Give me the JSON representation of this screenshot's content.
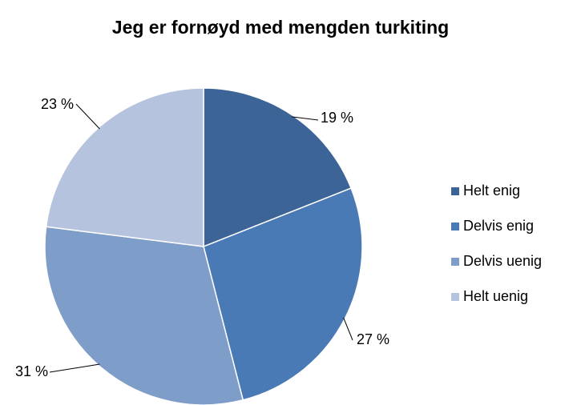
{
  "chart_data": {
    "type": "pie",
    "title": "Jeg er fornøyd med mengden turkiting",
    "categories": [
      "Helt enig",
      "Delvis enig",
      "Delvis uenig",
      "Helt uenig"
    ],
    "values": [
      19,
      27,
      31,
      23
    ],
    "value_labels": [
      "19 %",
      "27 %",
      "31 %",
      "23 %"
    ],
    "colors": [
      "#3c6496",
      "#4a7ab5",
      "#7f9dc9",
      "#b5c3de"
    ],
    "legend": "right"
  }
}
